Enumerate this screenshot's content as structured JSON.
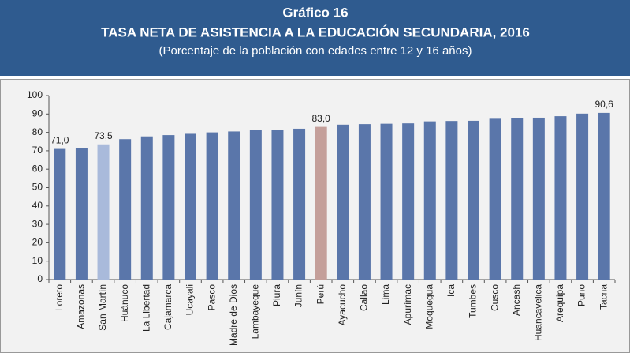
{
  "chart_data": {
    "type": "bar",
    "title": "Gráfico 16",
    "subtitle": "TASA NETA DE ASISTENCIA A LA EDUCACIÓN SECUNDARIA, 2016",
    "note": "(Porcentaje de la población con edades entre 12 y 16 años)",
    "categories": [
      "Loreto",
      "Amazonas",
      "San Martín",
      "Huánuco",
      "La Libertad",
      "Cajamarca",
      "Ucayali",
      "Pasco",
      "Madre de Dios",
      "Lambayeque",
      "Piura",
      "Junín",
      "Perú",
      "Ayacucho",
      "Callao",
      "Lima",
      "Apurímac",
      "Moquegua",
      "Ica",
      "Tumbes",
      "Cusco",
      "Ancash",
      "Huancavelica",
      "Arequipa",
      "Puno",
      "Tacna"
    ],
    "values": [
      71.0,
      71.5,
      73.5,
      76.3,
      77.8,
      78.5,
      79.2,
      80.0,
      80.5,
      81.2,
      81.5,
      82.0,
      83.0,
      84.2,
      84.5,
      84.7,
      84.9,
      86.0,
      86.2,
      86.3,
      87.4,
      87.8,
      88.0,
      88.8,
      90.2,
      90.6
    ],
    "value_labels": [
      "71,0",
      null,
      "73,5",
      null,
      null,
      null,
      null,
      null,
      null,
      null,
      null,
      null,
      "83,0",
      null,
      null,
      null,
      null,
      null,
      null,
      null,
      null,
      null,
      null,
      null,
      null,
      "90,6"
    ],
    "colors": [
      "#5a76aa",
      "#5a76aa",
      "#a9badb",
      "#5a76aa",
      "#5a76aa",
      "#5a76aa",
      "#5a76aa",
      "#5a76aa",
      "#5a76aa",
      "#5a76aa",
      "#5a76aa",
      "#5a76aa",
      "#c49f9a",
      "#5a76aa",
      "#5a76aa",
      "#5a76aa",
      "#5a76aa",
      "#5a76aa",
      "#5a76aa",
      "#5a76aa",
      "#5a76aa",
      "#5a76aa",
      "#5a76aa",
      "#5a76aa",
      "#5a76aa",
      "#5a76aa"
    ],
    "ylim": [
      0,
      100
    ],
    "yticks": [
      0,
      10,
      20,
      30,
      40,
      50,
      60,
      70,
      80,
      90,
      100
    ],
    "grid": false
  }
}
